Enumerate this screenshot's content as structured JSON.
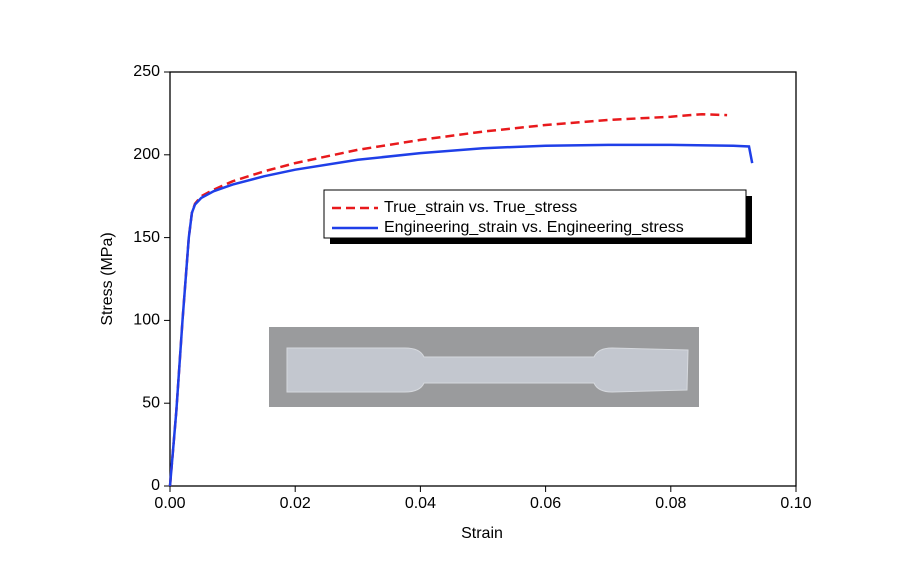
{
  "chart_data": {
    "type": "line",
    "x_label": "Strain",
    "y_label": "Stress (MPa)",
    "xlim": [
      0,
      0.1
    ],
    "ylim": [
      0,
      250
    ],
    "xticks": [
      {
        "value": 0,
        "label": "0.00"
      },
      0.02,
      0.04,
      0.06,
      0.08,
      {
        "value": 0.1,
        "label": "0.10"
      }
    ],
    "yticks": [
      0,
      50,
      100,
      150,
      200,
      250
    ],
    "series": [
      {
        "name": "True_strain vs. True_stress",
        "color": "#e8191c",
        "dash": true,
        "x": [
          0,
          0.001,
          0.002,
          0.003,
          0.0035,
          0.004,
          0.005,
          0.007,
          0.01,
          0.015,
          0.02,
          0.03,
          0.04,
          0.05,
          0.06,
          0.07,
          0.08,
          0.085,
          0.089
        ],
        "values": [
          0,
          45,
          100,
          150,
          165,
          170.5,
          175,
          179,
          184,
          190,
          195,
          203,
          209,
          214,
          218,
          221,
          223,
          224.5,
          224
        ]
      },
      {
        "name": "Engineering_strain vs. Engineering_stress",
        "color": "#1f3fe8",
        "dash": false,
        "x": [
          0,
          0.001,
          0.002,
          0.003,
          0.0035,
          0.004,
          0.005,
          0.007,
          0.01,
          0.015,
          0.02,
          0.03,
          0.04,
          0.05,
          0.06,
          0.07,
          0.08,
          0.09,
          0.0925,
          0.093
        ],
        "values": [
          0,
          45,
          100,
          150,
          165,
          170,
          174,
          178,
          182,
          187,
          191,
          197,
          201,
          204,
          205.5,
          206,
          206,
          205.5,
          205,
          195
        ]
      }
    ]
  }
}
